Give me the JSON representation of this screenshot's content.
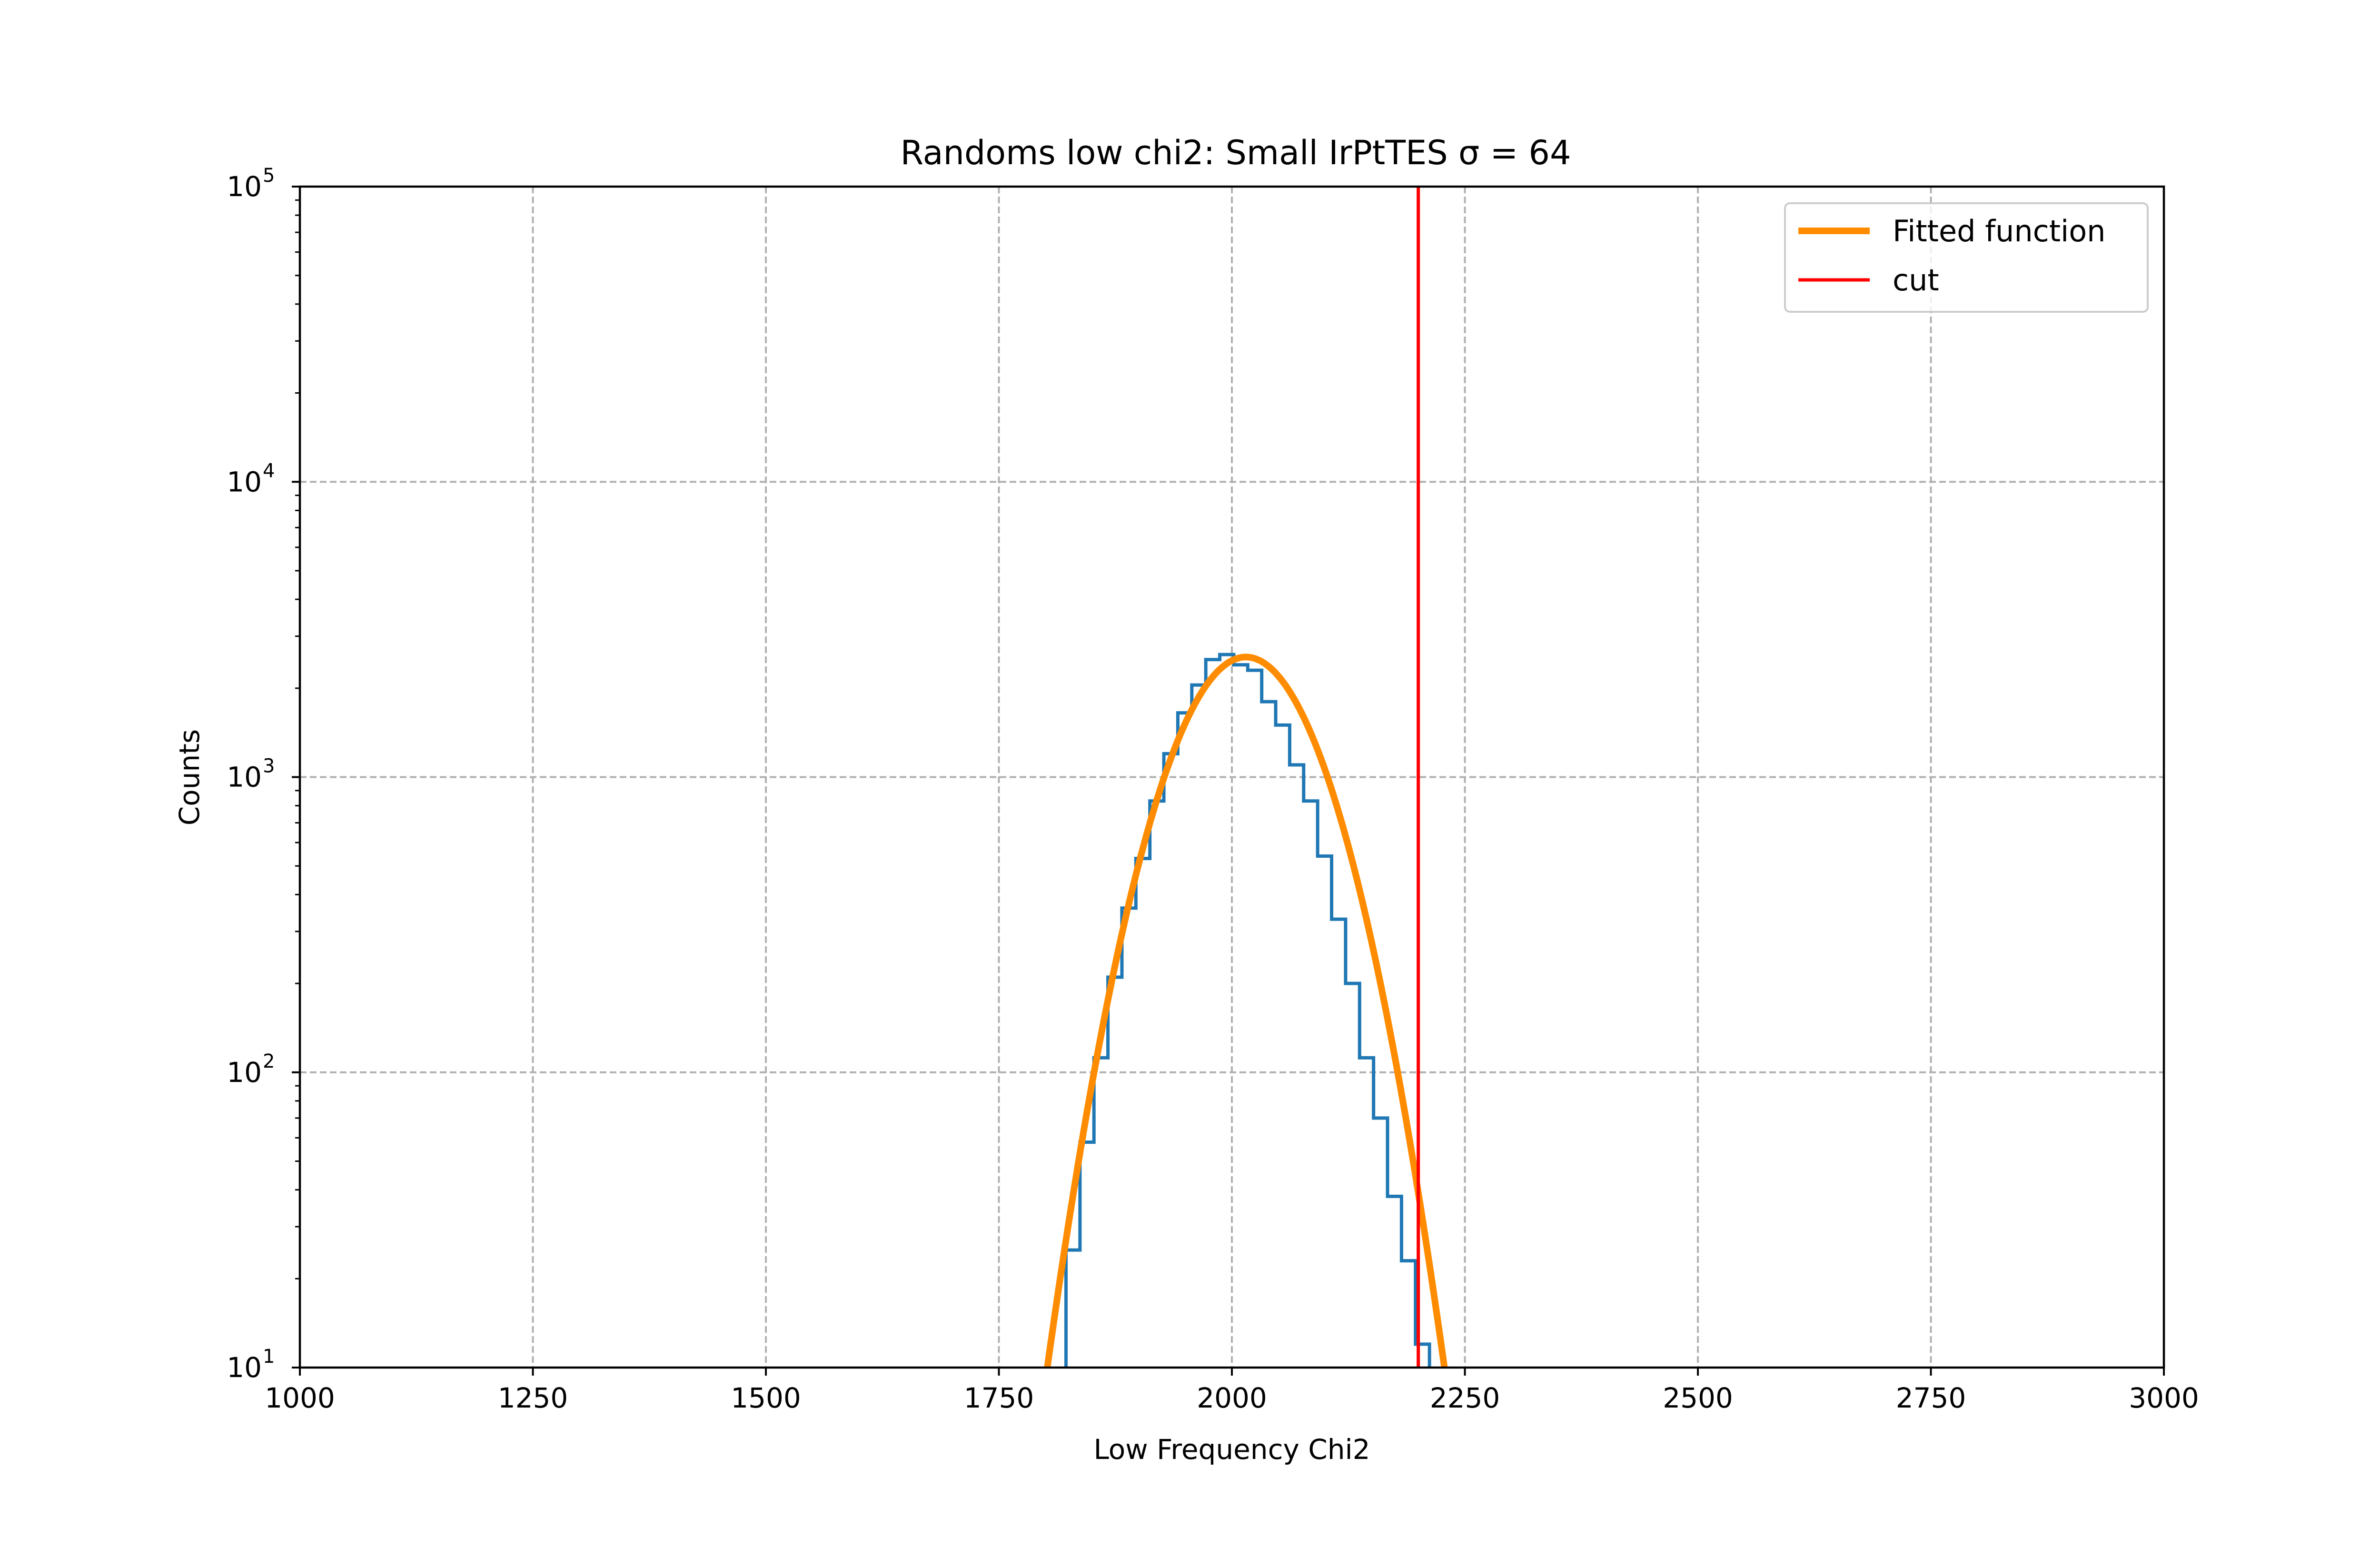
{
  "chart_data": {
    "type": "line",
    "title": "Randoms low chi2: Small IrPtTES σ = 64",
    "xlabel": "Low Frequency Chi2",
    "ylabel": "Counts",
    "xlim": [
      1000,
      3000
    ],
    "ylim": [
      10,
      100000
    ],
    "yscale": "log",
    "grid": true,
    "legend_position": "top-right",
    "x_ticks": [
      {
        "value": 1000,
        "label": "1000"
      },
      {
        "value": 1250,
        "label": "1250"
      },
      {
        "value": 1500,
        "label": "1500"
      },
      {
        "value": 1750,
        "label": "1750"
      },
      {
        "value": 2000,
        "label": "2000"
      },
      {
        "value": 2250,
        "label": "2250"
      },
      {
        "value": 2500,
        "label": "2500"
      },
      {
        "value": 2750,
        "label": "2750"
      },
      {
        "value": 3000,
        "label": "3000"
      }
    ],
    "y_ticks": [
      {
        "value": 10,
        "base": "10",
        "exp": "1"
      },
      {
        "value": 100,
        "base": "10",
        "exp": "2"
      },
      {
        "value": 1000,
        "base": "10",
        "exp": "3"
      },
      {
        "value": 10000,
        "base": "10",
        "exp": "4"
      },
      {
        "value": 100000,
        "base": "10",
        "exp": "5"
      }
    ],
    "histogram": {
      "color": "#1f77b4",
      "bin_edges": [
        1807,
        1822,
        1837,
        1852,
        1867,
        1882,
        1897,
        1912,
        1927,
        1942,
        1957,
        1972,
        1987,
        2002,
        2017,
        2032,
        2047,
        2062,
        2077,
        2092,
        2107,
        2122,
        2137,
        2152,
        2167,
        2182,
        2197,
        2212,
        2227,
        2242,
        2257
      ],
      "counts": [
        3,
        25,
        58,
        112,
        210,
        360,
        530,
        830,
        1200,
        1650,
        2050,
        2500,
        2600,
        2400,
        2300,
        1800,
        1500,
        1100,
        830,
        540,
        330,
        200,
        112,
        70,
        38,
        23,
        12,
        5,
        2,
        1
      ]
    },
    "series": [
      {
        "name": "Fitted function",
        "color": "#ff8c00",
        "model": "gaussian",
        "amplitude": 2550,
        "mean": 2015,
        "sigma": 64,
        "x_range": [
          1795,
          2235
        ]
      },
      {
        "name": "cut",
        "color": "#ff0000",
        "type": "vline",
        "x": 2200
      }
    ]
  }
}
